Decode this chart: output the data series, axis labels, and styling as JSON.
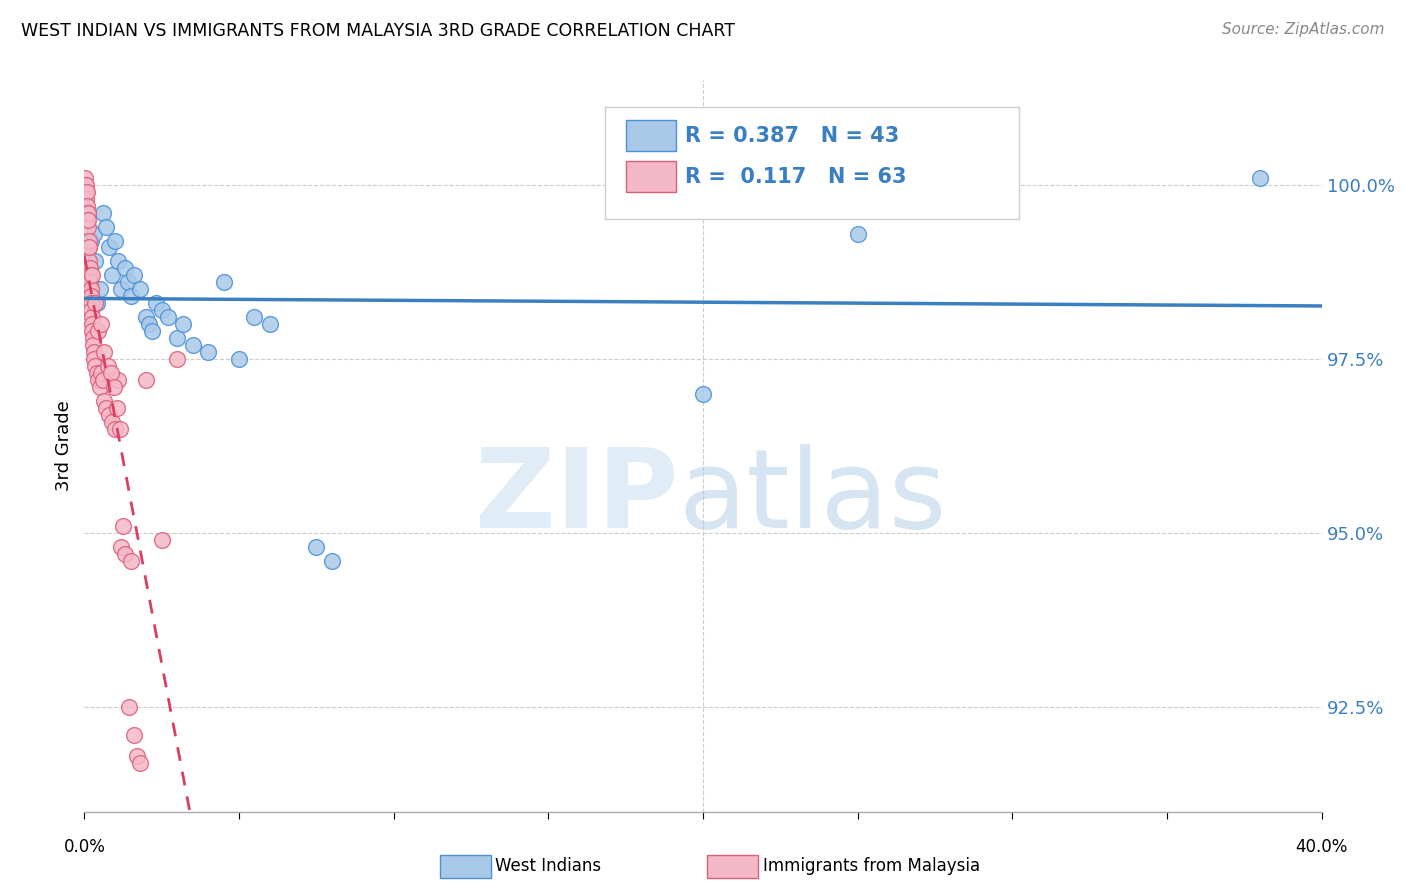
{
  "title": "WEST INDIAN VS IMMIGRANTS FROM MALAYSIA 3RD GRADE CORRELATION CHART",
  "source": "Source: ZipAtlas.com",
  "ylabel": "3rd Grade",
  "x_range": [
    0.0,
    40.0
  ],
  "y_range": [
    91.0,
    101.5
  ],
  "y_ticks": [
    92.5,
    95.0,
    97.5,
    100.0
  ],
  "y_tick_labels": [
    "92.5%",
    "95.0%",
    "97.5%",
    "100.0%"
  ],
  "legend_R_blue": "0.387",
  "legend_N_blue": "43",
  "legend_R_pink": "0.117",
  "legend_N_pink": "63",
  "blue_color": "#aac9e8",
  "blue_edge": "#4a90d9",
  "pink_color": "#f5b8c8",
  "pink_edge": "#d9607a",
  "trendline_blue": "#3a7fc1",
  "trendline_pink": "#d94060",
  "grid_color": "#cccccc",
  "blue_scatter": [
    [
      0.05,
      99.0
    ],
    [
      0.08,
      98.7
    ],
    [
      0.1,
      99.1
    ],
    [
      0.12,
      98.5
    ],
    [
      0.15,
      98.8
    ],
    [
      0.18,
      98.6
    ],
    [
      0.2,
      99.2
    ],
    [
      0.25,
      98.4
    ],
    [
      0.3,
      99.3
    ],
    [
      0.35,
      98.9
    ],
    [
      0.4,
      98.3
    ],
    [
      0.5,
      98.5
    ],
    [
      0.6,
      99.6
    ],
    [
      0.7,
      99.4
    ],
    [
      0.8,
      99.1
    ],
    [
      0.9,
      98.7
    ],
    [
      1.0,
      99.2
    ],
    [
      1.1,
      98.9
    ],
    [
      1.2,
      98.5
    ],
    [
      1.3,
      98.8
    ],
    [
      1.4,
      98.6
    ],
    [
      1.5,
      98.4
    ],
    [
      1.6,
      98.7
    ],
    [
      1.8,
      98.5
    ],
    [
      2.0,
      98.1
    ],
    [
      2.1,
      98.0
    ],
    [
      2.2,
      97.9
    ],
    [
      2.3,
      98.3
    ],
    [
      2.5,
      98.2
    ],
    [
      2.7,
      98.1
    ],
    [
      3.0,
      97.8
    ],
    [
      3.2,
      98.0
    ],
    [
      3.5,
      97.7
    ],
    [
      4.0,
      97.6
    ],
    [
      4.5,
      98.6
    ],
    [
      5.0,
      97.5
    ],
    [
      5.5,
      98.1
    ],
    [
      6.0,
      98.0
    ],
    [
      7.5,
      94.8
    ],
    [
      8.0,
      94.6
    ],
    [
      20.0,
      97.0
    ],
    [
      25.0,
      99.3
    ],
    [
      38.0,
      100.1
    ]
  ],
  "pink_scatter": [
    [
      0.02,
      100.1
    ],
    [
      0.03,
      100.0
    ],
    [
      0.04,
      99.9
    ],
    [
      0.05,
      100.0
    ],
    [
      0.06,
      99.8
    ],
    [
      0.07,
      99.9
    ],
    [
      0.08,
      99.7
    ],
    [
      0.09,
      99.6
    ],
    [
      0.1,
      99.5
    ],
    [
      0.11,
      99.4
    ],
    [
      0.12,
      99.6
    ],
    [
      0.13,
      99.5
    ],
    [
      0.14,
      99.1
    ],
    [
      0.15,
      98.9
    ],
    [
      0.16,
      99.2
    ],
    [
      0.17,
      98.8
    ],
    [
      0.18,
      98.7
    ],
    [
      0.19,
      98.6
    ],
    [
      0.2,
      98.5
    ],
    [
      0.21,
      98.4
    ],
    [
      0.22,
      98.3
    ],
    [
      0.23,
      98.2
    ],
    [
      0.24,
      98.1
    ],
    [
      0.25,
      98.0
    ],
    [
      0.26,
      97.9
    ],
    [
      0.27,
      97.8
    ],
    [
      0.28,
      97.7
    ],
    [
      0.3,
      97.6
    ],
    [
      0.32,
      97.5
    ],
    [
      0.35,
      97.4
    ],
    [
      0.4,
      97.3
    ],
    [
      0.45,
      97.2
    ],
    [
      0.5,
      97.1
    ],
    [
      0.55,
      97.3
    ],
    [
      0.6,
      97.2
    ],
    [
      0.65,
      96.9
    ],
    [
      0.7,
      96.8
    ],
    [
      0.8,
      96.7
    ],
    [
      0.9,
      96.6
    ],
    [
      1.0,
      96.5
    ],
    [
      1.1,
      97.2
    ],
    [
      1.2,
      94.8
    ],
    [
      1.3,
      94.7
    ],
    [
      1.5,
      94.6
    ],
    [
      1.6,
      92.1
    ],
    [
      1.7,
      91.8
    ],
    [
      1.8,
      91.7
    ],
    [
      2.0,
      97.2
    ],
    [
      2.5,
      94.9
    ],
    [
      3.0,
      97.5
    ],
    [
      0.15,
      99.1
    ],
    [
      0.25,
      98.7
    ],
    [
      0.35,
      98.3
    ],
    [
      0.45,
      97.9
    ],
    [
      0.55,
      98.0
    ],
    [
      0.65,
      97.6
    ],
    [
      0.75,
      97.4
    ],
    [
      0.85,
      97.3
    ],
    [
      0.95,
      97.1
    ],
    [
      1.05,
      96.8
    ],
    [
      1.15,
      96.5
    ],
    [
      1.25,
      95.1
    ],
    [
      1.45,
      92.5
    ]
  ]
}
